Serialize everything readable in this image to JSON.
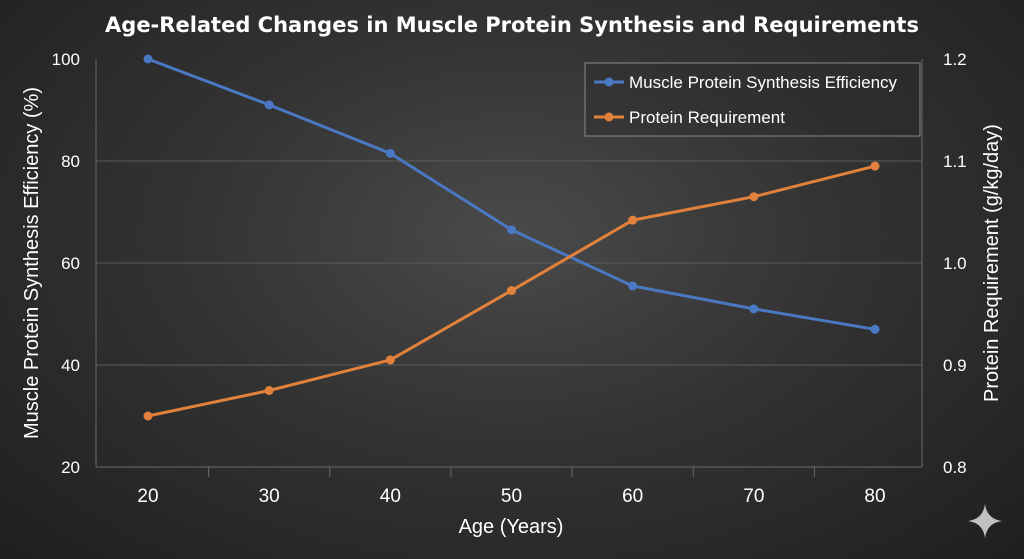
{
  "chart_data": {
    "type": "line",
    "title": "Age-Related Changes in Muscle Protein Synthesis and Requirements",
    "xlabel": "Age (Years)",
    "ylabel_left": "Muscle Protein Synthesis Efficiency (%)",
    "ylabel_right": "Protein Requirement (g/kg/day)",
    "x": [
      20,
      30,
      40,
      50,
      60,
      70,
      80
    ],
    "x_tick_labels": [
      "20",
      "30",
      "40",
      "50",
      "60",
      "70",
      "80"
    ],
    "ylim_left": [
      20,
      100
    ],
    "y_ticks_left": [
      "20",
      "40",
      "60",
      "80",
      "100"
    ],
    "ylim_right": [
      0.8,
      1.2
    ],
    "y_ticks_right": [
      "0.8",
      "0.9",
      "1.0",
      "1.1",
      "1.2"
    ],
    "legend_position": "top-right",
    "grid": true,
    "series": [
      {
        "name": "Muscle Protein Synthesis Efficiency",
        "axis": "left",
        "color": "#4a78c2",
        "values": [
          100,
          91,
          81.5,
          66.5,
          55.5,
          51,
          47
        ]
      },
      {
        "name": "Protein Requirement",
        "axis": "right",
        "color": "#e2813b",
        "values": [
          0.85,
          0.875,
          0.905,
          0.973,
          1.042,
          1.065,
          1.095
        ]
      }
    ]
  }
}
